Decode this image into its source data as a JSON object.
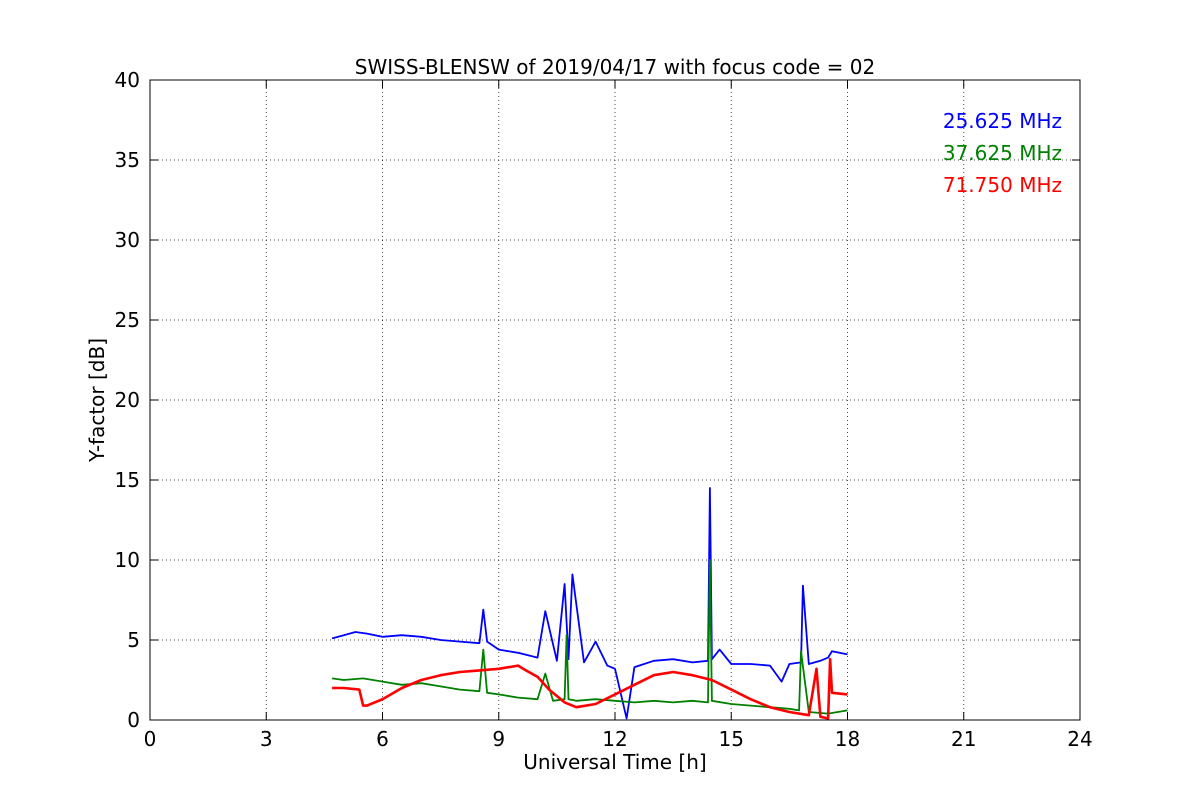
{
  "chart_data": {
    "type": "line",
    "title": "SWISS-BLENSW of 2019/04/17 with focus code = 02",
    "xlabel": "Universal Time [h]",
    "ylabel": "Y-factor [dB]",
    "xlim": [
      0,
      24
    ],
    "ylim": [
      0,
      40
    ],
    "xticks": [
      0,
      3,
      6,
      9,
      12,
      15,
      18,
      21,
      24
    ],
    "yticks": [
      0,
      5,
      10,
      15,
      20,
      25,
      30,
      35,
      40
    ],
    "grid": true,
    "legend_position": "top-right",
    "series": [
      {
        "name": "25.625 MHz",
        "color": "#0000ff",
        "x": [
          4.7,
          5.0,
          5.3,
          5.6,
          6.0,
          6.5,
          7.0,
          7.5,
          8.0,
          8.5,
          8.6,
          8.7,
          9.0,
          9.5,
          10.0,
          10.2,
          10.5,
          10.7,
          10.8,
          10.9,
          11.2,
          11.5,
          11.8,
          12.0,
          12.3,
          12.5,
          13.0,
          13.5,
          14.0,
          14.4,
          14.45,
          14.5,
          14.7,
          15.0,
          15.5,
          16.0,
          16.3,
          16.5,
          16.8,
          16.85,
          17.0,
          17.3,
          17.5,
          17.6,
          18.0
        ],
        "values": [
          5.1,
          5.3,
          5.5,
          5.4,
          5.2,
          5.3,
          5.2,
          5.0,
          4.9,
          4.8,
          6.9,
          4.9,
          4.4,
          4.2,
          3.9,
          6.8,
          3.7,
          8.5,
          3.8,
          9.1,
          3.6,
          4.9,
          3.4,
          3.2,
          0.1,
          3.3,
          3.7,
          3.8,
          3.6,
          3.7,
          14.5,
          3.8,
          4.4,
          3.5,
          3.5,
          3.4,
          2.4,
          3.5,
          3.6,
          8.4,
          3.5,
          3.7,
          3.9,
          4.3,
          4.1
        ]
      },
      {
        "name": "37.625 MHz",
        "color": "#008000",
        "x": [
          4.7,
          5.0,
          5.5,
          6.0,
          6.5,
          7.0,
          7.5,
          8.0,
          8.5,
          8.6,
          8.7,
          9.0,
          9.5,
          10.0,
          10.2,
          10.4,
          10.7,
          10.75,
          10.8,
          11.0,
          11.5,
          12.0,
          12.5,
          13.0,
          13.5,
          14.0,
          14.4,
          14.45,
          14.5,
          15.0,
          15.5,
          16.0,
          16.5,
          16.75,
          16.8,
          17.0,
          17.5,
          18.0
        ],
        "values": [
          2.6,
          2.5,
          2.6,
          2.4,
          2.2,
          2.3,
          2.1,
          1.9,
          1.8,
          4.4,
          1.7,
          1.6,
          1.4,
          1.3,
          2.9,
          1.2,
          1.3,
          5.3,
          1.3,
          1.2,
          1.3,
          1.2,
          1.1,
          1.2,
          1.1,
          1.2,
          1.1,
          10.0,
          1.2,
          1.0,
          0.9,
          0.8,
          0.7,
          0.6,
          4.3,
          0.5,
          0.4,
          0.6
        ]
      },
      {
        "name": "71.750 MHz",
        "color": "#ff0000",
        "x": [
          4.7,
          5.0,
          5.4,
          5.5,
          5.6,
          6.0,
          6.5,
          7.0,
          7.5,
          8.0,
          8.5,
          9.0,
          9.5,
          9.7,
          10.0,
          10.3,
          10.7,
          11.0,
          11.5,
          12.0,
          12.5,
          13.0,
          13.5,
          14.0,
          14.5,
          15.0,
          15.5,
          16.0,
          16.5,
          17.0,
          17.2,
          17.3,
          17.5,
          17.55,
          17.6,
          18.0
        ],
        "values": [
          2.0,
          2.0,
          1.9,
          0.9,
          0.9,
          1.3,
          2.0,
          2.5,
          2.8,
          3.0,
          3.1,
          3.2,
          3.4,
          3.1,
          2.7,
          1.9,
          1.1,
          0.8,
          1.0,
          1.6,
          2.2,
          2.8,
          3.0,
          2.8,
          2.5,
          1.9,
          1.3,
          0.8,
          0.5,
          0.3,
          3.2,
          0.2,
          0.1,
          3.8,
          1.7,
          1.6
        ]
      }
    ]
  }
}
